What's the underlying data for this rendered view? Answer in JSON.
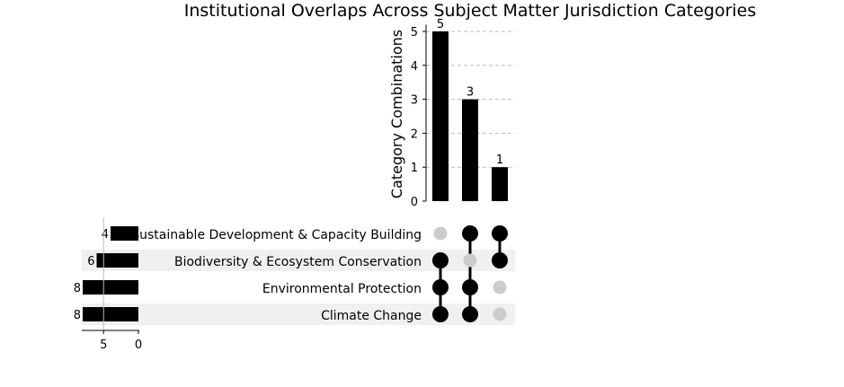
{
  "chart_data": {
    "type": "upset",
    "title": "Institutional Overlaps Across Subject Matter Jurisdiction Categories",
    "ylabel": "Category Combinations",
    "ylim": [
      0,
      5.2
    ],
    "yticks": [
      0,
      1,
      2,
      3,
      4,
      5
    ],
    "grid": true,
    "sets": [
      {
        "name": "Sustainable Development & Capacity Building",
        "size": 4
      },
      {
        "name": "Biodiversity & Ecosystem Conservation",
        "size": 6
      },
      {
        "name": "Environmental Protection",
        "size": 8
      },
      {
        "name": "Climate Change",
        "size": 8
      }
    ],
    "set_size_xlim": [
      8,
      0
    ],
    "set_size_ticks": [
      5,
      0
    ],
    "intersections": [
      {
        "members": [
          "Biodiversity & Ecosystem Conservation",
          "Environmental Protection",
          "Climate Change"
        ],
        "value": 5
      },
      {
        "members": [
          "Sustainable Development & Capacity Building",
          "Environmental Protection",
          "Climate Change"
        ],
        "value": 3
      },
      {
        "members": [
          "Sustainable Development & Capacity Building",
          "Biodiversity & Ecosystem Conservation"
        ],
        "value": 1
      }
    ],
    "colors": {
      "bar": "#000000",
      "active_dot": "#000000",
      "inactive_dot": "#cccccc",
      "stripe": "#f0f0f0",
      "grid": "#bbbbbb"
    }
  }
}
